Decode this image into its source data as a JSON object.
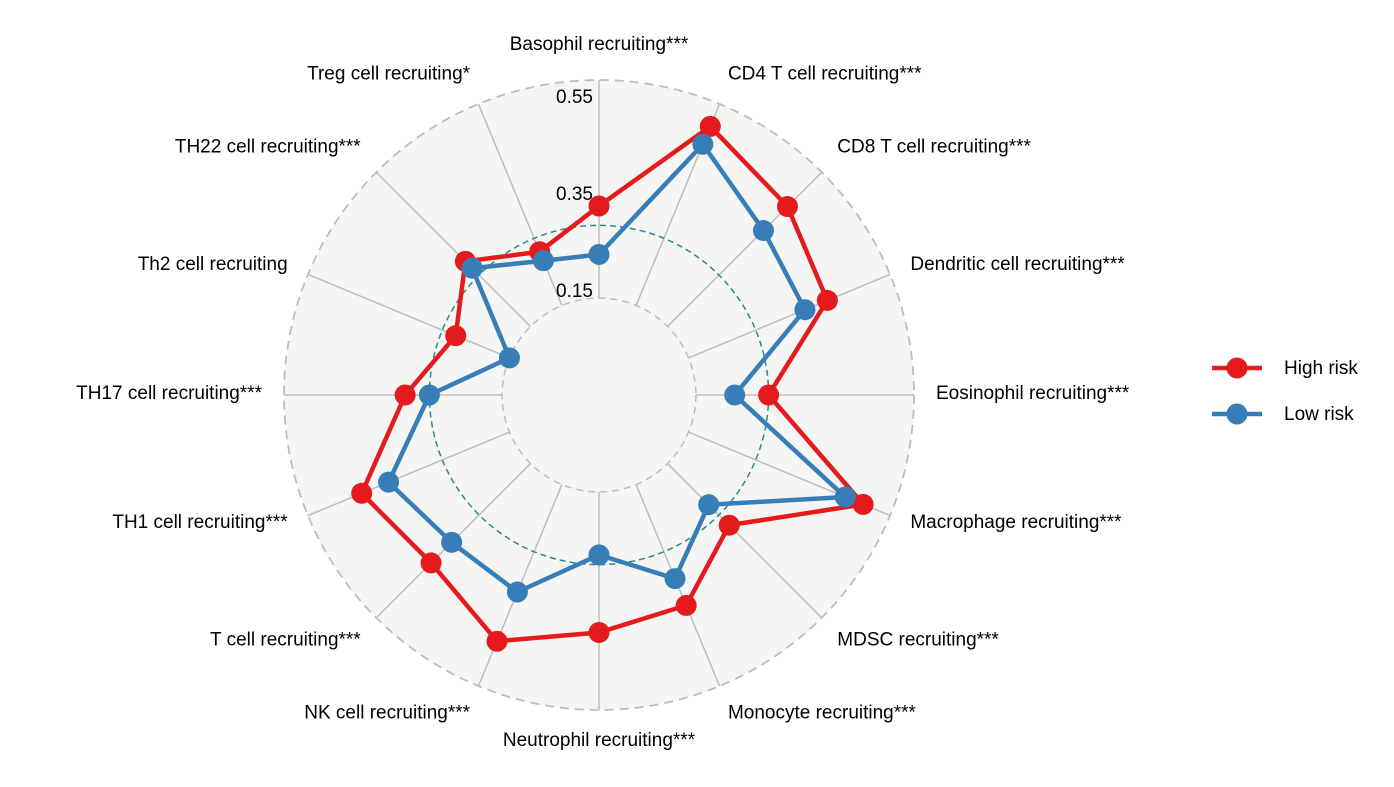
{
  "chart_data": {
    "type": "radar",
    "title": "",
    "categories": [
      "Basophil recruiting***",
      "CD4 T cell recruiting***",
      "CD8 T cell recruiting***",
      "Dendritic cell recruiting***",
      "Eosinophil recruiting***",
      "Macrophage recruiting***",
      "MDSC recruiting***",
      "Monocyte recruiting***",
      "Neutrophil recruiting***",
      "NK cell recruiting***",
      "T cell recruiting***",
      "TH1 cell recruiting***",
      "TH17 cell recruiting***",
      "Th2 cell recruiting",
      "TH22 cell recruiting***",
      "Treg cell recruiting*"
    ],
    "radial_ticks": [
      "0.15",
      "0.35",
      "0.55"
    ],
    "radial_tick_values": [
      0.15,
      0.35,
      0.55
    ],
    "rlim": [
      -0.05,
      0.6
    ],
    "reference_circle_value": 0.3,
    "series": [
      {
        "name": "High risk",
        "color": "#e41a1c",
        "values": [
          0.34,
          0.55,
          0.5,
          0.46,
          0.3,
          0.54,
          0.33,
          0.42,
          0.44,
          0.5,
          0.44,
          0.48,
          0.35,
          0.27,
          0.34,
          0.27
        ]
      },
      {
        "name": "Low risk",
        "color": "#377eb8",
        "values": [
          0.24,
          0.51,
          0.43,
          0.41,
          0.23,
          0.5,
          0.27,
          0.36,
          0.28,
          0.39,
          0.38,
          0.42,
          0.3,
          0.15,
          0.32,
          0.25
        ]
      }
    ],
    "legend_position": "right",
    "grid": true,
    "colors": {
      "background_disc": "#f5f5f4",
      "spoke": "#bdbdbd",
      "grid_ring": "#bdbdbd",
      "reference_ring": "#2a8b8b"
    }
  }
}
